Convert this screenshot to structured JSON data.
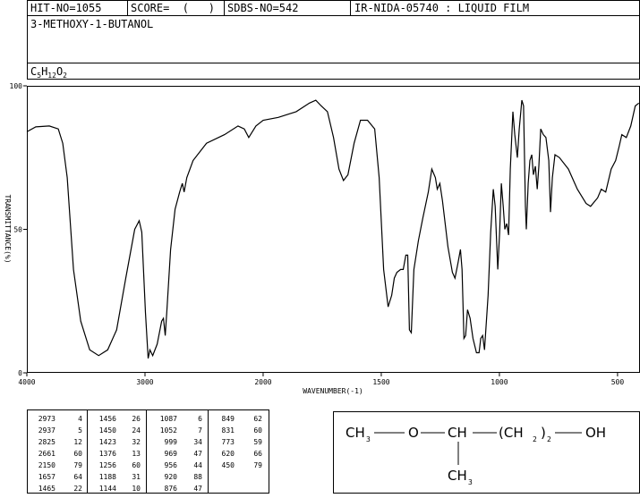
{
  "header": {
    "hit": "HIT-NO=1055",
    "score": "SCORE=  (   )",
    "sdbs": "SDBS-NO=542",
    "method": "IR-NIDA-05740 : LIQUID FILM",
    "name": "3-METHOXY-1-BUTANOL",
    "formula": [
      "C",
      "5",
      "H",
      "12",
      "O",
      "2"
    ]
  },
  "chart_data": {
    "type": "line",
    "x_label": "WAVENUMBER(-1)",
    "y_label": "TRANSMITTANCE(%)",
    "xlim": [
      4000,
      405
    ],
    "x_scale_break": 2000,
    "xticks": [
      4000,
      3000,
      2000,
      1500,
      1000,
      500
    ],
    "ylim": [
      0,
      100
    ],
    "yticks": [
      0,
      50,
      100
    ],
    "series": [
      {
        "color": "#000000",
        "x": [
          4000,
          3924,
          3810,
          3734,
          3696,
          3658,
          3605,
          3544,
          3468,
          3392,
          3316,
          3240,
          3163,
          3087,
          3049,
          3027,
          2996,
          2973,
          2958,
          2935,
          2897,
          2859,
          2844,
          2829,
          2814,
          2783,
          2745,
          2707,
          2684,
          2669,
          2646,
          2593,
          2479,
          2327,
          2213,
          2160,
          2122,
          2061,
          2000,
          1936,
          1860,
          1804,
          1777,
          1754,
          1728,
          1702,
          1679,
          1660,
          1641,
          1615,
          1588,
          1558,
          1528,
          1509,
          1490,
          1471,
          1456,
          1445,
          1434,
          1418,
          1407,
          1396,
          1388,
          1381,
          1373,
          1362,
          1343,
          1324,
          1301,
          1286,
          1271,
          1263,
          1252,
          1241,
          1218,
          1199,
          1188,
          1176,
          1165,
          1158,
          1150,
          1143,
          1135,
          1124,
          1112,
          1097,
          1086,
          1079,
          1071,
          1063,
          1048,
          1037,
          1026,
          1018,
          1007,
          999,
          992,
          984,
          977,
          969,
          961,
          954,
          943,
          935,
          924,
          916,
          905,
          898,
          890,
          886,
          878,
          871,
          863,
          856,
          848,
          840,
          833,
          825,
          814,
          803,
          791,
          784,
          776,
          765,
          746,
          708,
          670,
          633,
          614,
          584,
          569,
          550,
          527,
          508,
          493,
          482,
          463,
          444,
          425,
          410
        ],
        "values": [
          84,
          85.7,
          86,
          85,
          80,
          68,
          36,
          18,
          8,
          6,
          8,
          15,
          33,
          50,
          53,
          49,
          21,
          5,
          8,
          6,
          10,
          18,
          19,
          13,
          22,
          43,
          57,
          63,
          66,
          63,
          68,
          74,
          80,
          83,
          86,
          85,
          82,
          86,
          88,
          89,
          91,
          94,
          95,
          93,
          91,
          82,
          71,
          67,
          69,
          80,
          88,
          88,
          85,
          68,
          36,
          23,
          27,
          33,
          35,
          36,
          36,
          41,
          41,
          15,
          14,
          36,
          46,
          54,
          63,
          71,
          68,
          64,
          66,
          60,
          44,
          35,
          33,
          38,
          43,
          36,
          12,
          13,
          22,
          19,
          12,
          7,
          7,
          12,
          13,
          8,
          27,
          49,
          64,
          58,
          36,
          49,
          66,
          58,
          50,
          52,
          48,
          71,
          91,
          83,
          75,
          85,
          95,
          93,
          58,
          50,
          66,
          74,
          76,
          69,
          72,
          64,
          72,
          85,
          83,
          82,
          74,
          56,
          68,
          76,
          75,
          71,
          64,
          59,
          58,
          61,
          64,
          63,
          71,
          74,
          79,
          83,
          82,
          86,
          93,
          94
        ]
      }
    ]
  },
  "peaks": [
    [
      [
        2973,
        4
      ],
      [
        2937,
        5
      ],
      [
        2825,
        12
      ],
      [
        2661,
        60
      ],
      [
        2150,
        79
      ],
      [
        1657,
        64
      ],
      [
        1465,
        22
      ]
    ],
    [
      [
        1456,
        26
      ],
      [
        1450,
        24
      ],
      [
        1423,
        32
      ],
      [
        1376,
        13
      ],
      [
        1256,
        60
      ],
      [
        1188,
        31
      ],
      [
        1144,
        10
      ]
    ],
    [
      [
        1087,
        6
      ],
      [
        1052,
        7
      ],
      [
        999,
        34
      ],
      [
        969,
        47
      ],
      [
        956,
        44
      ],
      [
        920,
        88
      ],
      [
        876,
        47
      ]
    ],
    [
      [
        849,
        62
      ],
      [
        831,
        60
      ],
      [
        773,
        59
      ],
      [
        620,
        66
      ],
      [
        450,
        79
      ]
    ]
  ],
  "structure": {
    "main": [
      "CH",
      "3",
      "O",
      "CH",
      "(CH",
      "2",
      ")",
      "2",
      "OH"
    ],
    "branch": [
      "CH",
      "3"
    ]
  }
}
